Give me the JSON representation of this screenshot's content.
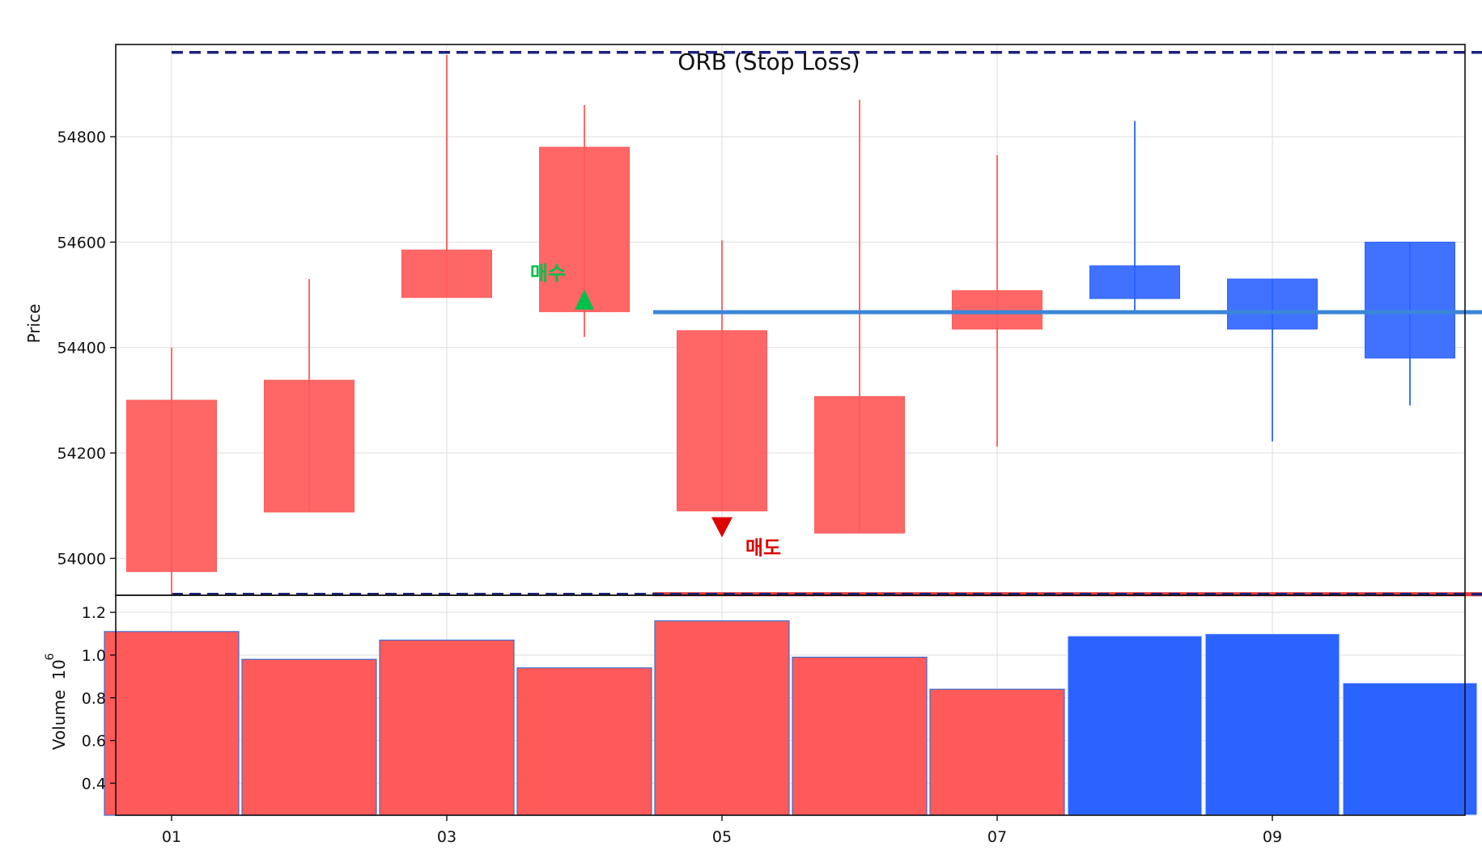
{
  "chart_data": {
    "type": "candlestick",
    "title": "ORB (Stop Loss)",
    "x_tick_labels": [
      "01",
      "03",
      "05",
      "07",
      "09"
    ],
    "candles": [
      {
        "open": 53975,
        "high": 54400,
        "low": 53930,
        "close": 54300,
        "volume": 1.11
      },
      {
        "open": 54088,
        "high": 54530,
        "low": 54088,
        "close": 54338,
        "volume": 0.98
      },
      {
        "open": 54495,
        "high": 54955,
        "low": 54495,
        "close": 54585,
        "volume": 1.07
      },
      {
        "open": 54468,
        "high": 54860,
        "low": 54420,
        "close": 54780,
        "volume": 0.94
      },
      {
        "open": 54090,
        "high": 54603,
        "low": 54090,
        "close": 54432,
        "volume": 1.16
      },
      {
        "open": 54048,
        "high": 54870,
        "low": 54048,
        "close": 54307,
        "volume": 0.99
      },
      {
        "open": 54435,
        "high": 54765,
        "low": 54212,
        "close": 54508,
        "volume": 0.84
      },
      {
        "open": 54555,
        "high": 54830,
        "low": 54470,
        "close": 54493,
        "volume": 1.09
      },
      {
        "open": 54530,
        "high": 54530,
        "low": 54222,
        "close": 54435,
        "volume": 1.1
      },
      {
        "open": 54600,
        "high": 54600,
        "low": 54290,
        "close": 54380,
        "volume": 0.87
      }
    ],
    "price_axis": {
      "label": "Price",
      "ticks": [
        54000,
        54200,
        54400,
        54600,
        54800
      ],
      "range": [
        53930,
        54975
      ]
    },
    "volume_axis": {
      "label": "Volume",
      "scale_label": "10",
      "scale_exponent": "6",
      "ticks": [
        "0.4",
        "0.6",
        "0.8",
        "1.0",
        "1.2"
      ],
      "range": [
        0.25,
        1.28
      ]
    },
    "orb_high": 54960,
    "orb_low": 53932,
    "entry_level": 54467,
    "entry_range": [
      3.5,
      10
    ],
    "orb_range": [
      0,
      10
    ],
    "buy_marker": {
      "index": 3,
      "price": 54495,
      "label": "매수"
    },
    "sell_marker": {
      "index": 4,
      "price": 54055,
      "label": "매도"
    },
    "grid": true,
    "colors": {
      "up": "#ff5a5a",
      "down": "#2b63ff",
      "orb_line": "#1a237e",
      "entry_line": "#3a86d8",
      "stop_line": "#e53935",
      "buy": "#00c04b",
      "sell": "#dd0000"
    }
  }
}
